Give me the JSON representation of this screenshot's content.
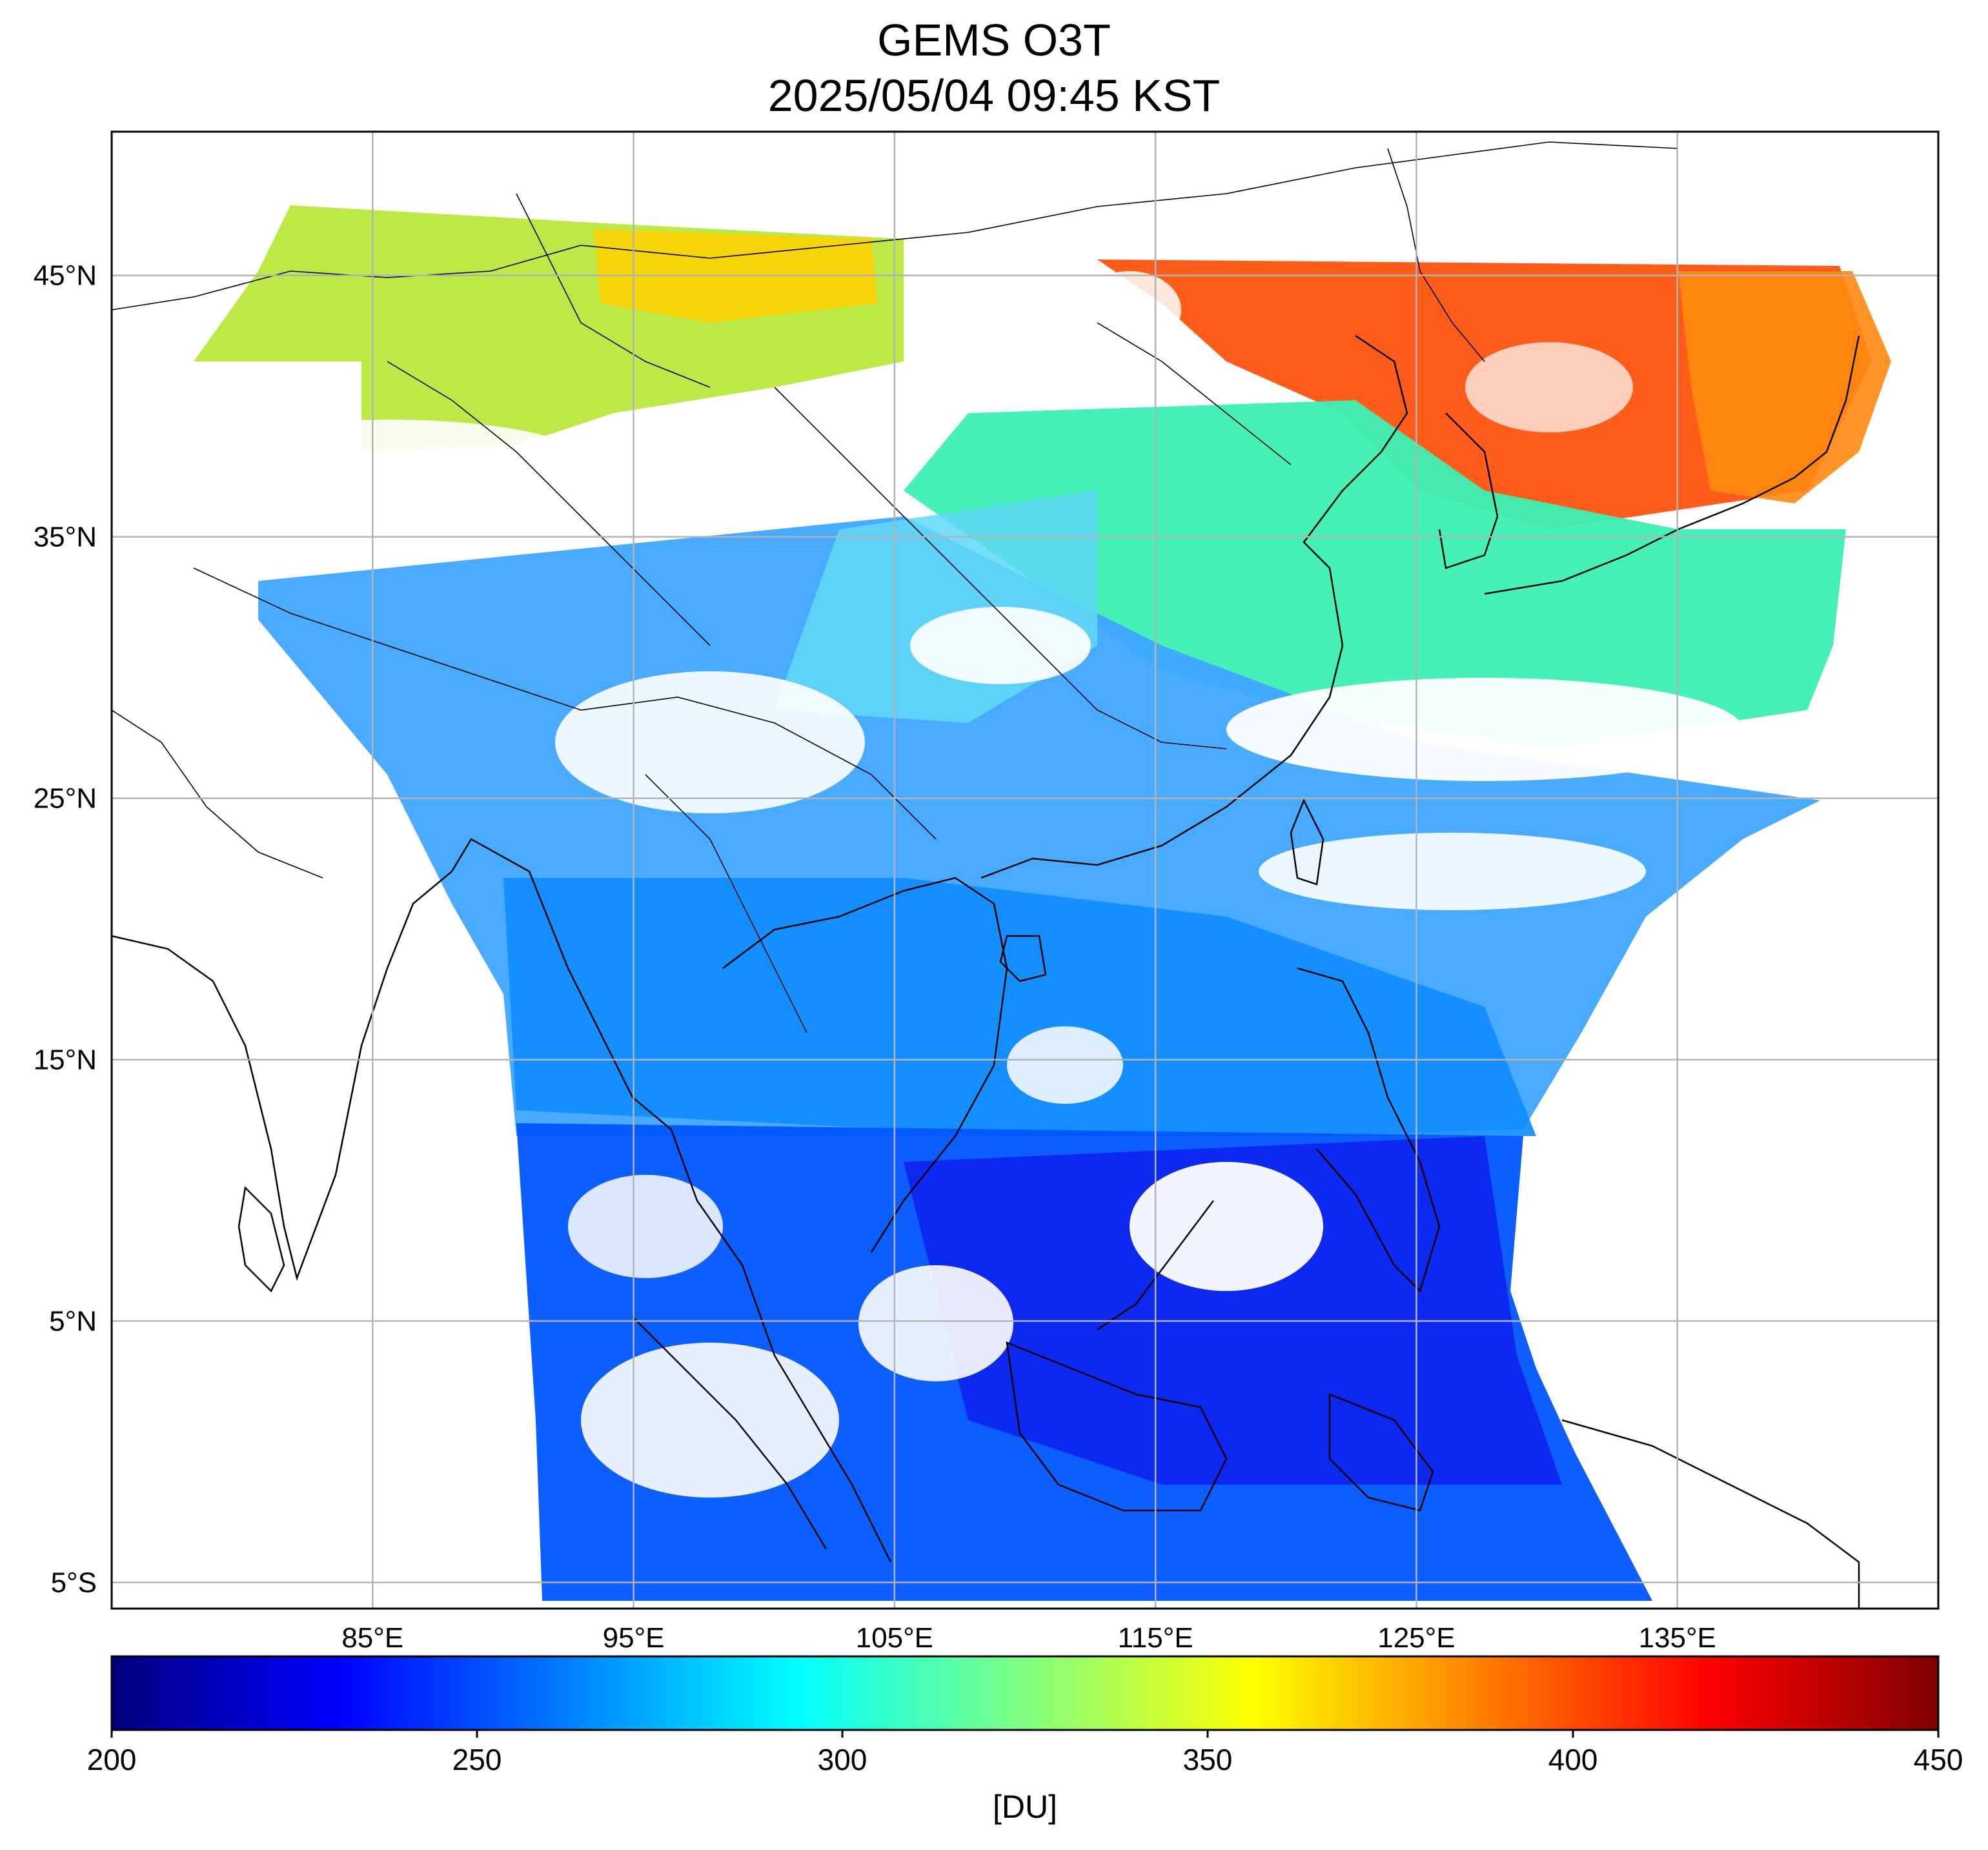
{
  "title": {
    "line1": "GEMS O3T",
    "line2": "2025/05/04 09:45 KST"
  },
  "map": {
    "lon_range": [
      75,
      145
    ],
    "lat_range": [
      -6,
      50.5
    ],
    "lat_ticks": [
      {
        "value": 45,
        "label": "45°N"
      },
      {
        "value": 35,
        "label": "35°N"
      },
      {
        "value": 25,
        "label": "25°N"
      },
      {
        "value": 15,
        "label": "15°N"
      },
      {
        "value": 5,
        "label": "5°N"
      },
      {
        "value": -5,
        "label": "5°S"
      }
    ],
    "lon_ticks": [
      {
        "value": 85,
        "label": "85°E"
      },
      {
        "value": 95,
        "label": "95°E"
      },
      {
        "value": 105,
        "label": "105°E"
      },
      {
        "value": 115,
        "label": "115°E"
      },
      {
        "value": 125,
        "label": "125°E"
      },
      {
        "value": 135,
        "label": "135°E"
      }
    ],
    "gridlines": true,
    "gridline_color": "#b3b3b3",
    "field_regions": [
      {
        "color": "#b8e83c"
      },
      {
        "color": "#ffd000"
      },
      {
        "color": "#ff4a00"
      },
      {
        "color": "#ff8a10"
      },
      {
        "color": "#3cf0b4"
      },
      {
        "color": "#3fa7ff"
      },
      {
        "color": "#0f8bff"
      },
      {
        "color": "#0055ff"
      },
      {
        "color": "#0d24f0"
      },
      {
        "color": "#5ed8f5"
      }
    ]
  },
  "colorbar": {
    "min": 200,
    "max": 450,
    "ticks": [
      {
        "value": 200,
        "label": "200"
      },
      {
        "value": 250,
        "label": "250"
      },
      {
        "value": 300,
        "label": "300"
      },
      {
        "value": 350,
        "label": "350"
      },
      {
        "value": 400,
        "label": "400"
      },
      {
        "value": 450,
        "label": "450"
      }
    ],
    "unit": "[DU]",
    "colormap": "jet",
    "stops": [
      "#00007f",
      "#0000ff",
      "#007fff",
      "#00ffff",
      "#7fff7f",
      "#ffff00",
      "#ff7f00",
      "#ff0000",
      "#7f0000"
    ]
  }
}
